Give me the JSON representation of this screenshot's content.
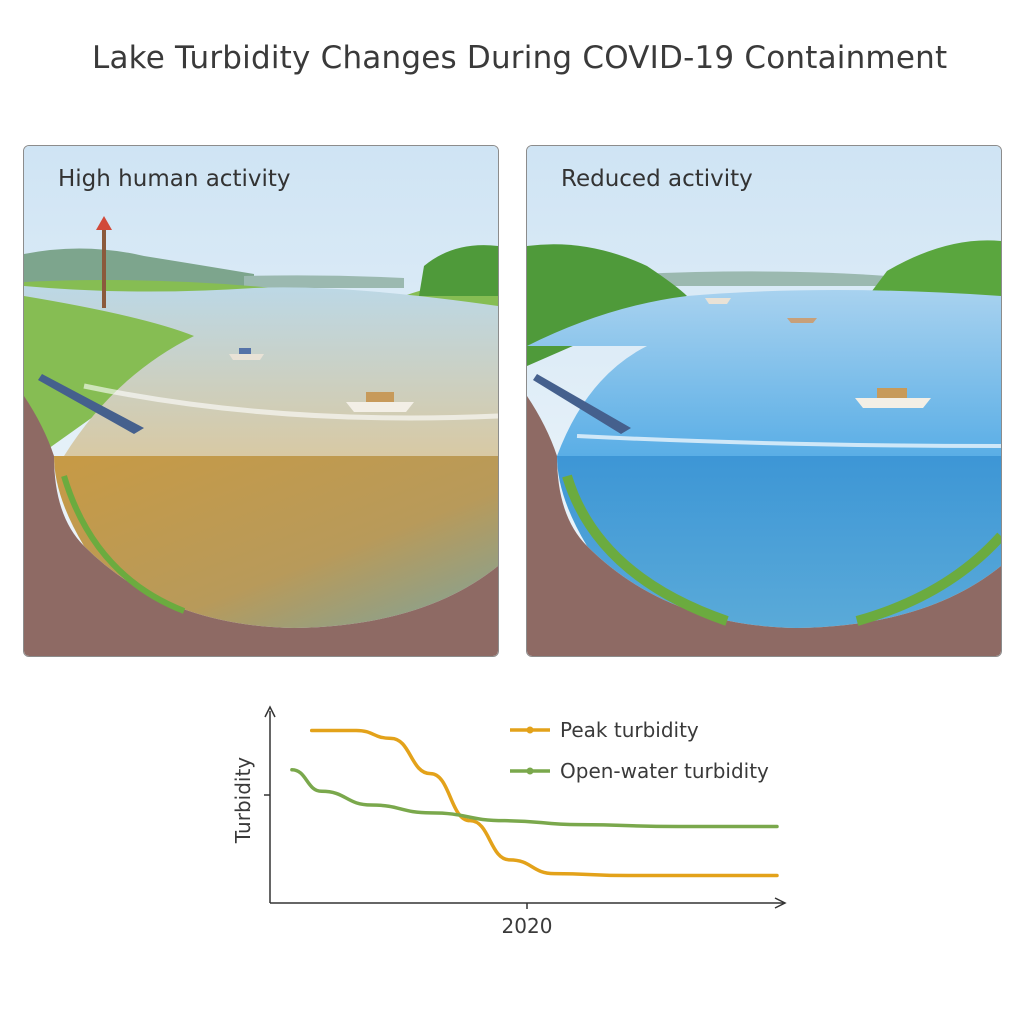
{
  "title": "Lake Turbidity Changes During COVID-19 Containment",
  "panels": {
    "left": {
      "label": "High human activity"
    },
    "right": {
      "label": "Reduced activity"
    }
  },
  "colors": {
    "peak": "#e3a21a",
    "open": "#7aa84c",
    "turbid_water": "#c9963f",
    "clear_water": "#4a9fd8",
    "soil": "#8e6a64",
    "grass": "#7fbf4c"
  },
  "chart_data": {
    "type": "line",
    "title": "",
    "xlabel": "",
    "ylabel": "Turbidity",
    "x_tick_labels": [
      "2020"
    ],
    "legend_placement": "top-right",
    "series": [
      {
        "name": "Peak turbidity",
        "points": [
          [
            0.06,
            0.88
          ],
          [
            0.15,
            0.88
          ],
          [
            0.22,
            0.84
          ],
          [
            0.3,
            0.66
          ],
          [
            0.38,
            0.42
          ],
          [
            0.46,
            0.22
          ],
          [
            0.55,
            0.15
          ],
          [
            0.7,
            0.14
          ],
          [
            1.0,
            0.14
          ]
        ]
      },
      {
        "name": "Open-water turbidity",
        "points": [
          [
            0.02,
            0.68
          ],
          [
            0.08,
            0.57
          ],
          [
            0.18,
            0.5
          ],
          [
            0.3,
            0.46
          ],
          [
            0.45,
            0.42
          ],
          [
            0.6,
            0.4
          ],
          [
            0.8,
            0.39
          ],
          [
            1.0,
            0.39
          ]
        ]
      }
    ]
  }
}
